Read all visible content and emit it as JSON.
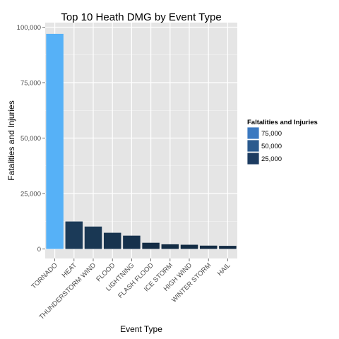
{
  "chart_data": {
    "type": "bar",
    "title": "Top 10 Heath DMG by Event Type",
    "xlabel": "Event Type",
    "ylabel": "Fatalities and Injuries",
    "categories": [
      "TORNADO",
      "HEAT",
      "THUNDERSTORM WIND",
      "FLOOD",
      "LIGHTNING",
      "FLASH FLOOD",
      "ICE STORM",
      "HIGH WIND",
      "WINTER STORM",
      "HAIL"
    ],
    "values": [
      97000,
      12400,
      10100,
      7300,
      6000,
      2800,
      2100,
      1900,
      1500,
      1400
    ],
    "ylim": [
      0,
      100000
    ],
    "yticks": [
      0,
      25000,
      50000,
      75000,
      100000
    ],
    "ytick_labels": [
      "0",
      "25,000",
      "50,000",
      "75,000",
      "100,000"
    ],
    "grid": true,
    "legend": {
      "title": "Faltalities and Injuries",
      "position": "right",
      "entries": [
        {
          "label": "75,000",
          "color": "#3b79c0"
        },
        {
          "label": "50,000",
          "color": "#2a5a8e"
        },
        {
          "label": "25,000",
          "color": "#1d3c61"
        }
      ]
    },
    "colors": {
      "panel_background": "#e5e5e5",
      "gridline": "#ffffff",
      "low": "#132b43",
      "high": "#56b1f7"
    }
  }
}
